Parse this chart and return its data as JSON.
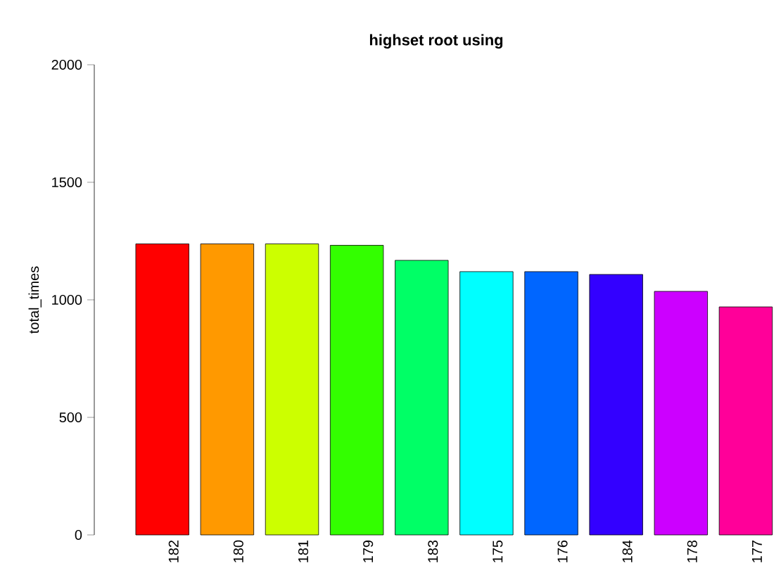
{
  "chart_data": {
    "type": "bar",
    "title": "highset root using",
    "ylabel": "total_times",
    "categories": [
      "182",
      "180",
      "181",
      "179",
      "183",
      "175",
      "176",
      "184",
      "178",
      "177"
    ],
    "values": [
      1238,
      1238,
      1238,
      1232,
      1168,
      1120,
      1120,
      1108,
      1036,
      970
    ],
    "colors": [
      "#ff0000",
      "#ff9900",
      "#ccff00",
      "#33ff00",
      "#00ff66",
      "#00ffff",
      "#0066ff",
      "#3300ff",
      "#cc00ff",
      "#ff0099"
    ],
    "ylim": [
      0,
      2000
    ],
    "yticks": [
      0,
      500,
      1000,
      1500,
      2000
    ]
  }
}
